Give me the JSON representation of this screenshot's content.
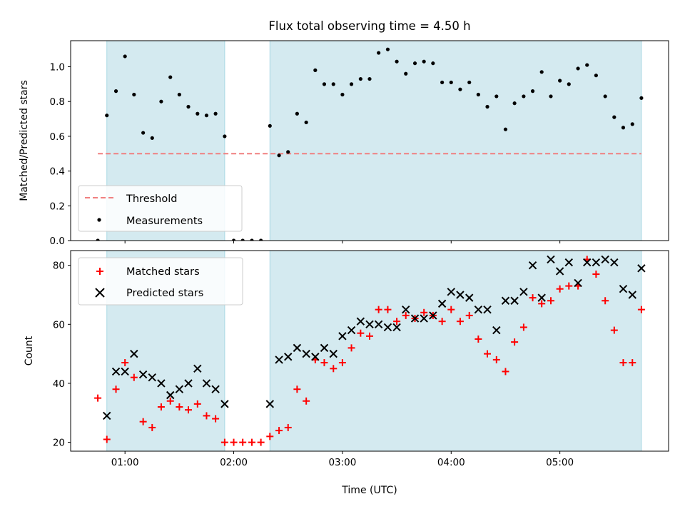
{
  "title": "Flux total observing time = 4.50 h",
  "colors": {
    "shade": "#d4eaf0",
    "shade_edge": "#a9d8e3",
    "threshold": "#f08080",
    "measurement": "#000000",
    "matched": "#ff0000",
    "predicted": "#000000"
  },
  "chart_data": [
    {
      "type": "scatter",
      "ylabel": "Matched/Predicted stars",
      "xlabel": "",
      "xlim": [
        0.5,
        6.0
      ],
      "ylim": [
        0,
        1.15
      ],
      "yticks": [
        "0.0",
        "0.2",
        "0.4",
        "0.6",
        "0.8",
        "1.0"
      ],
      "ytick_values": [
        0,
        0.2,
        0.4,
        0.6,
        0.8,
        1.0
      ],
      "shaded_intervals": [
        [
          0.833,
          1.917
        ],
        [
          2.333,
          5.75
        ]
      ],
      "threshold": {
        "name": "Threshold",
        "y": 0.5,
        "x_range": [
          0.75,
          5.75
        ]
      },
      "legend": {
        "placement": "lower-left",
        "entries": [
          "Threshold",
          "Measurements"
        ]
      },
      "series": [
        {
          "name": "Measurements",
          "x": [
            0.75,
            0.833,
            0.917,
            1.0,
            1.083,
            1.167,
            1.25,
            1.333,
            1.417,
            1.5,
            1.583,
            1.667,
            1.75,
            1.833,
            1.917,
            2.0,
            2.083,
            2.167,
            2.25,
            2.333,
            2.417,
            2.5,
            2.583,
            2.667,
            2.75,
            2.833,
            2.917,
            3.0,
            3.083,
            3.167,
            3.25,
            3.333,
            3.417,
            3.5,
            3.583,
            3.667,
            3.75,
            3.833,
            3.917,
            4.0,
            4.083,
            4.167,
            4.25,
            4.333,
            4.417,
            4.5,
            4.583,
            4.667,
            4.75,
            4.833,
            4.917,
            5.0,
            5.083,
            5.167,
            5.25,
            5.333,
            5.417,
            5.5,
            5.583,
            5.667,
            5.75
          ],
          "y": [
            0.0,
            0.72,
            0.86,
            1.06,
            0.84,
            0.62,
            0.59,
            0.8,
            0.94,
            0.84,
            0.77,
            0.73,
            0.72,
            0.73,
            0.6,
            0.0,
            0.0,
            0.0,
            0.0,
            0.66,
            0.49,
            0.51,
            0.73,
            0.68,
            0.98,
            0.9,
            0.9,
            0.84,
            0.9,
            0.93,
            0.93,
            1.08,
            1.1,
            1.03,
            0.96,
            1.02,
            1.03,
            1.02,
            0.91,
            0.91,
            0.87,
            0.91,
            0.84,
            0.77,
            0.83,
            0.64,
            0.79,
            0.83,
            0.86,
            0.97,
            0.83,
            0.92,
            0.9,
            0.99,
            1.01,
            0.95,
            0.83,
            0.71,
            0.65,
            0.67,
            0.82
          ]
        }
      ]
    },
    {
      "type": "scatter",
      "ylabel": "Count",
      "xlabel": "Time (UTC)",
      "xlim": [
        0.5,
        6.0
      ],
      "ylim": [
        17,
        85
      ],
      "yticks": [
        "20",
        "40",
        "60",
        "80"
      ],
      "ytick_values": [
        20,
        40,
        60,
        80
      ],
      "xticks": [
        "01:00",
        "02:00",
        "03:00",
        "04:00",
        "05:00"
      ],
      "xtick_values": [
        1,
        2,
        3,
        4,
        5
      ],
      "shaded_intervals": [
        [
          0.833,
          1.917
        ],
        [
          2.333,
          5.75
        ]
      ],
      "legend": {
        "placement": "upper-left",
        "entries": [
          "Matched stars",
          "Predicted stars"
        ]
      },
      "series": [
        {
          "name": "Matched stars",
          "x": [
            0.75,
            0.833,
            0.917,
            1.0,
            1.083,
            1.167,
            1.25,
            1.333,
            1.417,
            1.5,
            1.583,
            1.667,
            1.75,
            1.833,
            1.917,
            2.0,
            2.083,
            2.167,
            2.25,
            2.333,
            2.417,
            2.5,
            2.583,
            2.667,
            2.75,
            2.833,
            2.917,
            3.0,
            3.083,
            3.167,
            3.25,
            3.333,
            3.417,
            3.5,
            3.583,
            3.667,
            3.75,
            3.833,
            3.917,
            4.0,
            4.083,
            4.167,
            4.25,
            4.333,
            4.417,
            4.5,
            4.583,
            4.667,
            4.75,
            4.833,
            4.917,
            5.0,
            5.083,
            5.167,
            5.25,
            5.333,
            5.417,
            5.5,
            5.583,
            5.667,
            5.75
          ],
          "y": [
            35,
            21,
            38,
            47,
            42,
            27,
            25,
            32,
            34,
            32,
            31,
            33,
            29,
            28,
            20,
            20,
            20,
            20,
            20,
            22,
            24,
            25,
            38,
            34,
            48,
            47,
            45,
            47,
            52,
            57,
            56,
            65,
            65,
            61,
            63,
            62,
            64,
            63,
            61,
            65,
            61,
            63,
            55,
            50,
            48,
            44,
            54,
            59,
            69,
            67,
            68,
            72,
            73,
            73,
            82,
            77,
            68,
            58,
            47,
            47,
            65
          ]
        },
        {
          "name": "Predicted stars",
          "x": [
            0.833,
            0.917,
            1.0,
            1.083,
            1.167,
            1.25,
            1.333,
            1.417,
            1.5,
            1.583,
            1.667,
            1.75,
            1.833,
            1.917,
            2.333,
            2.417,
            2.5,
            2.583,
            2.667,
            2.75,
            2.833,
            2.917,
            3.0,
            3.083,
            3.167,
            3.25,
            3.333,
            3.417,
            3.5,
            3.583,
            3.667,
            3.75,
            3.833,
            3.917,
            4.0,
            4.083,
            4.167,
            4.25,
            4.333,
            4.417,
            4.5,
            4.583,
            4.667,
            4.75,
            4.833,
            4.917,
            5.0,
            5.083,
            5.167,
            5.25,
            5.333,
            5.417,
            5.5,
            5.583,
            5.667,
            5.75
          ],
          "y": [
            29,
            44,
            44,
            50,
            43,
            42,
            40,
            36,
            38,
            40,
            45,
            40,
            38,
            33,
            33,
            48,
            49,
            52,
            50,
            49,
            52,
            50,
            56,
            58,
            61,
            60,
            60,
            59,
            59,
            65,
            62,
            62,
            63,
            67,
            71,
            70,
            69,
            65,
            65,
            58,
            68,
            68,
            71,
            80,
            69,
            82,
            78,
            81,
            74,
            81,
            81,
            82,
            81,
            72,
            70,
            79
          ]
        }
      ]
    }
  ]
}
